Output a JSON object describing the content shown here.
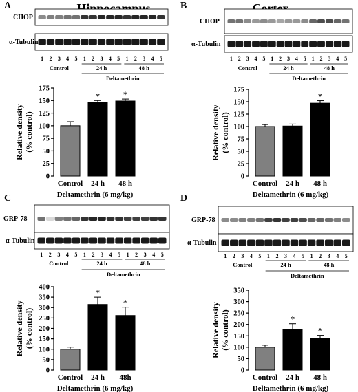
{
  "panels": [
    {
      "id": "A",
      "title": "Hippocampus",
      "blots": [
        {
          "label": "CHOP",
          "kind": "chop_hc"
        },
        {
          "label": "α-Tubulin",
          "kind": "tub"
        }
      ],
      "lanes": [
        "1",
        "2",
        "3",
        "4",
        "5",
        "1",
        "2",
        "3",
        "4",
        "5",
        "1",
        "2",
        "3",
        "4",
        "5"
      ],
      "groups": [
        "Control",
        "24 h",
        "48 h"
      ],
      "treatment": "Deltamethrin",
      "chart_data": {
        "type": "bar",
        "categories": [
          "Control",
          "24 h",
          "48 h"
        ],
        "values": [
          100,
          146,
          149
        ],
        "errors": [
          8,
          4,
          4
        ],
        "significant": [
          false,
          true,
          true
        ],
        "bar_colors": [
          "#808080",
          "#000000",
          "#000000"
        ],
        "ylim": [
          0,
          175
        ],
        "yticks": [
          0,
          25,
          50,
          75,
          100,
          125,
          150,
          175
        ],
        "ylabel": [
          "Relative density",
          "(% control)"
        ],
        "xlabel": "Deltamethrin (6 mg/kg)",
        "sig_marker": "*"
      }
    },
    {
      "id": "B",
      "title": "Cortex",
      "blots": [
        {
          "label": "CHOP",
          "kind": "chop_cx"
        },
        {
          "label": "α-Tubulin",
          "kind": "tub"
        }
      ],
      "lanes": [
        "1",
        "2",
        "3",
        "4",
        "5",
        "1",
        "2",
        "3",
        "4",
        "5",
        "1",
        "2",
        "3",
        "4",
        "5"
      ],
      "groups": [
        "Control",
        "24 h",
        "48 h"
      ],
      "treatment": "Deltamethrin",
      "chart_data": {
        "type": "bar",
        "categories": [
          "Control",
          "24 h",
          "48 h"
        ],
        "values": [
          100,
          101,
          147
        ],
        "errors": [
          4,
          4,
          5
        ],
        "significant": [
          false,
          false,
          true
        ],
        "bar_colors": [
          "#808080",
          "#000000",
          "#000000"
        ],
        "ylim": [
          0,
          175
        ],
        "yticks": [
          0,
          25,
          50,
          75,
          100,
          125,
          150,
          175
        ],
        "ylabel": [
          "Relative density",
          "(% control)"
        ],
        "xlabel": "Deltamethrin (6 mg/kg)",
        "sig_marker": "*"
      }
    },
    {
      "id": "C",
      "title": "",
      "blots": [
        {
          "label": "GRP-78",
          "kind": "grp_c"
        },
        {
          "label": "α-Tubulin",
          "kind": "tub"
        }
      ],
      "lanes": [
        "1",
        "2",
        "3",
        "4",
        "5",
        "1",
        "2",
        "3",
        "4",
        "5",
        "1",
        "2",
        "3",
        "4",
        "5"
      ],
      "groups": [
        "Control",
        "24 h",
        "48 h"
      ],
      "treatment": "Deltamethrin",
      "chart_data": {
        "type": "bar",
        "categories": [
          "Control",
          "24 h",
          "48h"
        ],
        "values": [
          100,
          315,
          262
        ],
        "errors": [
          10,
          35,
          40
        ],
        "significant": [
          false,
          true,
          true
        ],
        "bar_colors": [
          "#808080",
          "#000000",
          "#000000"
        ],
        "ylim": [
          0,
          400
        ],
        "yticks": [
          0,
          50,
          100,
          150,
          200,
          250,
          300,
          350,
          400
        ],
        "ylabel": [
          "Relative density",
          "(% control)"
        ],
        "xlabel": "Deltamethrin (6 mg/kg)",
        "sig_marker": "*"
      }
    },
    {
      "id": "D",
      "title": "",
      "blots": [
        {
          "label": "GRP-78",
          "kind": "grp_d"
        },
        {
          "label": "α-Tubulin",
          "kind": "tub"
        }
      ],
      "lanes": [
        "1",
        "2",
        "3",
        "4",
        "5",
        "1",
        "2",
        "3",
        "4",
        "5",
        "1",
        "2",
        "3",
        "4",
        "5"
      ],
      "groups": [
        "Control",
        "24 h",
        "48 h"
      ],
      "treatment": "Deltamethrin",
      "chart_data": {
        "type": "bar",
        "categories": [
          "Control",
          "24 h",
          "48 h"
        ],
        "values": [
          100,
          178,
          140
        ],
        "errors": [
          9,
          25,
          12
        ],
        "significant": [
          false,
          true,
          true
        ],
        "bar_colors": [
          "#808080",
          "#000000",
          "#000000"
        ],
        "ylim": [
          0,
          350
        ],
        "yticks": [
          0,
          50,
          100,
          150,
          200,
          250,
          300,
          350
        ],
        "ylabel": [
          "Relative density",
          "(% control)"
        ],
        "xlabel": "Deltamethrin (6 mg/kg)",
        "sig_marker": "*"
      }
    }
  ]
}
